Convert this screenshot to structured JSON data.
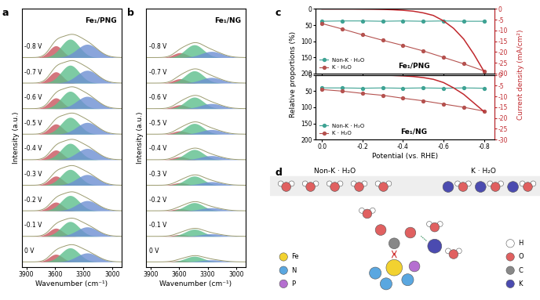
{
  "panel_labels": [
    "a",
    "b",
    "c",
    "d"
  ],
  "chart_data": [
    {
      "type": "spectrum",
      "title": "Fe₁/PNG",
      "xlabel": "Wavenumber (cm⁻¹)",
      "ylabel": "Intensity (a.u.)",
      "xlim": [
        3950,
        2900
      ],
      "xticks": [
        3900,
        3600,
        3300,
        3000
      ],
      "ylim": [
        -0.2,
        9.9
      ],
      "tick_labels": "x",
      "color": "#9c9c70",
      "components": [
        {
          "center": 3590,
          "width": 70,
          "color": "#c9545c"
        },
        {
          "center": 3440,
          "width": 95,
          "color": "#5dbf8c"
        },
        {
          "center": 3260,
          "width": 110,
          "color": "#6d8fd3"
        }
      ],
      "curves": [
        {
          "name": "0 V",
          "heights": [
            0.3,
            0.55,
            0.35
          ]
        },
        {
          "name": "-0.1 V",
          "heights": [
            0.32,
            0.58,
            0.37
          ]
        },
        {
          "name": "-0.2 V",
          "heights": [
            0.34,
            0.6,
            0.4
          ]
        },
        {
          "name": "-0.3 V",
          "heights": [
            0.36,
            0.62,
            0.42
          ]
        },
        {
          "name": "-0.4 V",
          "heights": [
            0.38,
            0.64,
            0.44
          ]
        },
        {
          "name": "-0.5 V",
          "heights": [
            0.4,
            0.66,
            0.46
          ]
        },
        {
          "name": "-0.6 V",
          "heights": [
            0.42,
            0.68,
            0.48
          ]
        },
        {
          "name": "-0.7 V",
          "heights": [
            0.44,
            0.7,
            0.5
          ]
        },
        {
          "name": "-0.8 V",
          "heights": [
            0.46,
            0.72,
            0.52
          ]
        }
      ]
    },
    {
      "type": "spectrum",
      "title": "Fe₁/NG",
      "xlabel": "Wavenumber (cm⁻¹)",
      "ylabel": "Intensity (a.u.)",
      "xlim": [
        3950,
        2900
      ],
      "xticks": [
        3900,
        3600,
        3300,
        3000
      ],
      "ylim": [
        -0.2,
        9.9
      ],
      "tick_labels": "x",
      "color": "#9c9c70",
      "components": [
        {
          "center": 3590,
          "width": 70,
          "color": "#c9545c"
        },
        {
          "center": 3440,
          "width": 95,
          "color": "#5dbf8c"
        },
        {
          "center": 3260,
          "width": 110,
          "color": "#6d8fd3"
        }
      ],
      "curves": [
        {
          "name": "0 V",
          "heights": [
            0.05,
            0.22,
            0.08
          ]
        },
        {
          "name": "-0.1 V",
          "heights": [
            0.07,
            0.28,
            0.1
          ]
        },
        {
          "name": "-0.2 V",
          "heights": [
            0.08,
            0.32,
            0.12
          ]
        },
        {
          "name": "-0.3 V",
          "heights": [
            0.1,
            0.36,
            0.14
          ]
        },
        {
          "name": "-0.4 V",
          "heights": [
            0.12,
            0.4,
            0.16
          ]
        },
        {
          "name": "-0.5 V",
          "heights": [
            0.13,
            0.42,
            0.18
          ]
        },
        {
          "name": "-0.6 V",
          "heights": [
            0.15,
            0.45,
            0.2
          ]
        },
        {
          "name": "-0.7 V",
          "heights": [
            0.17,
            0.48,
            0.22
          ]
        },
        {
          "name": "-0.8 V",
          "heights": [
            0.19,
            0.5,
            0.24
          ]
        }
      ]
    },
    {
      "type": "line",
      "xlabel": "Potential (vs. RHE)",
      "ylabel": "Relative proportions (%)",
      "y2label": "Current density (mA/cm²)",
      "xlim": [
        0.03,
        -0.85
      ],
      "xticks": [
        0.0,
        -0.2,
        -0.4,
        -0.6,
        -0.8
      ],
      "ylim": [
        200,
        0
      ],
      "yticks": [
        0,
        50,
        100,
        150,
        200
      ],
      "y2lim": [
        -30,
        0
      ],
      "y2ticks": [
        0,
        -5,
        -10,
        -15,
        -20,
        -25,
        -30
      ],
      "legend": "lower left",
      "panels": [
        {
          "title": "Fe₁/PNG",
          "series": [
            {
              "name": "Non-K · H₂O",
              "color": "#3fa394",
              "marker": "o",
              "line_style": "-",
              "x": [
                0.0,
                -0.1,
                -0.2,
                -0.3,
                -0.4,
                -0.5,
                -0.6,
                -0.7,
                -0.8
              ],
              "values": [
                38,
                37,
                37,
                38,
                37,
                38,
                37,
                38,
                38
              ]
            },
            {
              "name": "K · H₂O",
              "color": "#b5524f",
              "marker": "o",
              "line_style": "-",
              "x": [
                0.0,
                -0.1,
                -0.2,
                -0.3,
                -0.4,
                -0.5,
                -0.6,
                -0.7,
                -0.8
              ],
              "values": [
                45,
                62,
                80,
                97,
                113,
                130,
                150,
                170,
                192
              ]
            },
            {
              "type": "line",
              "axis": "y2",
              "color": "#c0282d",
              "x": [
                0.0,
                -0.05,
                -0.1,
                -0.15,
                -0.2,
                -0.25,
                -0.3,
                -0.35,
                -0.4,
                -0.45,
                -0.5,
                -0.55,
                -0.6,
                -0.65,
                -0.7,
                -0.75,
                -0.8
              ],
              "values": [
                0,
                0,
                0,
                0,
                -0.05,
                -0.1,
                -0.2,
                -0.35,
                -0.6,
                -1.0,
                -1.8,
                -3.0,
                -5.5,
                -9,
                -14,
                -21,
                -29
              ]
            }
          ]
        },
        {
          "title": "Fe₁/NG",
          "series": [
            {
              "name": "Non-K · H₂O",
              "color": "#3fa394",
              "marker": "o",
              "line_style": "-",
              "x": [
                0.0,
                -0.1,
                -0.2,
                -0.3,
                -0.4,
                -0.5,
                -0.6,
                -0.7,
                -0.8
              ],
              "values": [
                40,
                40,
                41,
                40,
                41,
                40,
                41,
                40,
                41
              ]
            },
            {
              "name": "K · H₂O",
              "color": "#b5524f",
              "marker": "o",
              "line_style": "-",
              "x": [
                0.0,
                -0.1,
                -0.2,
                -0.3,
                -0.4,
                -0.5,
                -0.6,
                -0.7,
                -0.8
              ],
              "values": [
                45,
                50,
                57,
                63,
                72,
                80,
                90,
                100,
                112
              ]
            },
            {
              "type": "line",
              "axis": "y2",
              "color": "#c0282d",
              "x": [
                0.0,
                -0.05,
                -0.1,
                -0.15,
                -0.2,
                -0.25,
                -0.3,
                -0.35,
                -0.4,
                -0.45,
                -0.5,
                -0.55,
                -0.6,
                -0.65,
                -0.7,
                -0.75,
                -0.8
              ],
              "values": [
                0,
                0,
                0,
                0,
                0,
                -0.05,
                -0.1,
                -0.2,
                -0.4,
                -0.7,
                -1.2,
                -2,
                -3.5,
                -6,
                -9,
                -13,
                -17
              ]
            }
          ]
        }
      ]
    }
  ],
  "diagram": {
    "labels": [
      "Non-K · H₂O",
      "K · H₂O"
    ],
    "atoms": [
      {
        "symbol": "Fe",
        "color": "#f2d230"
      },
      {
        "symbol": "N",
        "color": "#5aa7e0"
      },
      {
        "symbol": "P",
        "color": "#b56fd0"
      },
      {
        "symbol": "H",
        "color": "#ffffff"
      },
      {
        "symbol": "O",
        "color": "#e06060"
      },
      {
        "symbol": "C",
        "color": "#888888"
      },
      {
        "symbol": "K",
        "color": "#4b4bb0"
      }
    ]
  }
}
